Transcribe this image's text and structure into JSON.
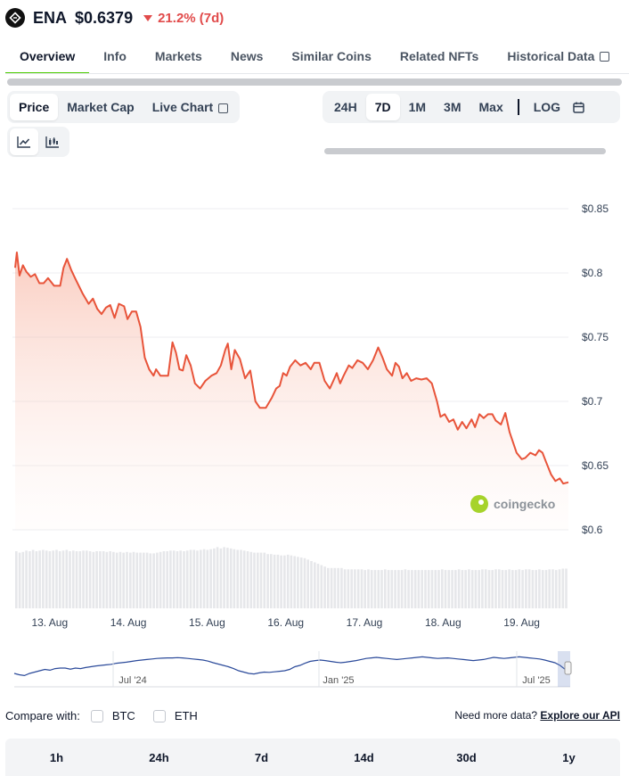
{
  "coin": {
    "symbol": "ENA",
    "price": "$0.6379",
    "change": "21.2% (7d)",
    "change_color": "#e14b4b"
  },
  "tabs": [
    {
      "label": "Overview",
      "active": true
    },
    {
      "label": "Info"
    },
    {
      "label": "Markets"
    },
    {
      "label": "News"
    },
    {
      "label": "Similar Coins"
    },
    {
      "label": "Related NFTs"
    },
    {
      "label": "Historical Data"
    }
  ],
  "chart_types": [
    "Price",
    "Market Cap",
    "Live Chart"
  ],
  "ranges": [
    "24H",
    "7D",
    "1M",
    "3M",
    "Max"
  ],
  "log_label": "LOG",
  "icons": {
    "line_chart": "line-chart-icon",
    "candle_chart": "candlestick-icon",
    "calendar": "calendar-icon",
    "external": "external-link-icon"
  },
  "watermark": "coingecko",
  "compare": {
    "label": "Compare with:",
    "options": [
      "BTC",
      "ETH"
    ]
  },
  "more_data": {
    "text": "Need more data?",
    "link": "Explore our API"
  },
  "bottom_table": {
    "headers": [
      "1h",
      "24h",
      "7d",
      "14d",
      "30d",
      "1y"
    ]
  },
  "chart_data": {
    "type": "area",
    "title": "",
    "xlabel": "",
    "ylabel": "",
    "line_color": "#e8543a",
    "x_ticks": [
      "13. Aug",
      "14. Aug",
      "15. Aug",
      "16. Aug",
      "17. Aug",
      "18. Aug",
      "19. Aug"
    ],
    "y_ticks": [
      "$0.85",
      "$0.8",
      "$0.75",
      "$0.7",
      "$0.65",
      "$0.6"
    ],
    "ylim": [
      0.6,
      0.85
    ],
    "x_start": "12. Aug 17:30",
    "x_end": "19. Aug 17:30",
    "series": [
      {
        "points": [
          [
            0.0,
            0.804
          ],
          [
            0.02,
            0.816
          ],
          [
            0.05,
            0.798
          ],
          [
            0.09,
            0.806
          ],
          [
            0.13,
            0.801
          ],
          [
            0.18,
            0.797
          ],
          [
            0.23,
            0.799
          ],
          [
            0.28,
            0.792
          ],
          [
            0.33,
            0.792
          ],
          [
            0.38,
            0.796
          ],
          [
            0.45,
            0.79
          ],
          [
            0.52,
            0.79
          ],
          [
            0.56,
            0.804
          ],
          [
            0.6,
            0.811
          ],
          [
            0.65,
            0.802
          ],
          [
            0.7,
            0.795
          ],
          [
            0.78,
            0.784
          ],
          [
            0.85,
            0.776
          ],
          [
            0.9,
            0.78
          ],
          [
            0.95,
            0.772
          ],
          [
            1.0,
            0.768
          ],
          [
            1.05,
            0.773
          ],
          [
            1.1,
            0.775
          ],
          [
            1.15,
            0.765
          ],
          [
            1.2,
            0.776
          ],
          [
            1.26,
            0.774
          ],
          [
            1.3,
            0.764
          ],
          [
            1.35,
            0.77
          ],
          [
            1.4,
            0.77
          ],
          [
            1.45,
            0.758
          ],
          [
            1.5,
            0.734
          ],
          [
            1.55,
            0.725
          ],
          [
            1.6,
            0.72
          ],
          [
            1.63,
            0.725
          ],
          [
            1.68,
            0.72
          ],
          [
            1.72,
            0.72
          ],
          [
            1.77,
            0.72
          ],
          [
            1.82,
            0.746
          ],
          [
            1.86,
            0.738
          ],
          [
            1.9,
            0.725
          ],
          [
            1.94,
            0.724
          ],
          [
            1.98,
            0.736
          ],
          [
            2.03,
            0.728
          ],
          [
            2.08,
            0.714
          ],
          [
            2.14,
            0.71
          ],
          [
            2.2,
            0.716
          ],
          [
            2.27,
            0.72
          ],
          [
            2.33,
            0.722
          ],
          [
            2.38,
            0.728
          ],
          [
            2.43,
            0.74
          ],
          [
            2.46,
            0.745
          ],
          [
            2.5,
            0.725
          ],
          [
            2.54,
            0.74
          ],
          [
            2.6,
            0.733
          ],
          [
            2.66,
            0.718
          ],
          [
            2.72,
            0.724
          ],
          [
            2.78,
            0.7
          ],
          [
            2.83,
            0.695
          ],
          [
            2.9,
            0.695
          ],
          [
            2.97,
            0.703
          ],
          [
            3.02,
            0.71
          ],
          [
            3.06,
            0.712
          ],
          [
            3.1,
            0.722
          ],
          [
            3.14,
            0.72
          ],
          [
            3.18,
            0.727
          ],
          [
            3.24,
            0.732
          ],
          [
            3.3,
            0.728
          ],
          [
            3.36,
            0.73
          ],
          [
            3.42,
            0.725
          ],
          [
            3.46,
            0.73
          ],
          [
            3.52,
            0.73
          ],
          [
            3.58,
            0.716
          ],
          [
            3.64,
            0.71
          ],
          [
            3.68,
            0.716
          ],
          [
            3.72,
            0.722
          ],
          [
            3.76,
            0.714
          ],
          [
            3.8,
            0.72
          ],
          [
            3.86,
            0.728
          ],
          [
            3.9,
            0.726
          ],
          [
            3.96,
            0.732
          ],
          [
            4.02,
            0.73
          ],
          [
            4.08,
            0.725
          ],
          [
            4.14,
            0.732
          ],
          [
            4.2,
            0.742
          ],
          [
            4.25,
            0.734
          ],
          [
            4.3,
            0.725
          ],
          [
            4.36,
            0.72
          ],
          [
            4.4,
            0.73
          ],
          [
            4.44,
            0.727
          ],
          [
            4.48,
            0.718
          ],
          [
            4.53,
            0.722
          ],
          [
            4.58,
            0.716
          ],
          [
            4.64,
            0.718
          ],
          [
            4.7,
            0.717
          ],
          [
            4.76,
            0.718
          ],
          [
            4.82,
            0.714
          ],
          [
            4.88,
            0.7
          ],
          [
            4.92,
            0.688
          ],
          [
            4.97,
            0.69
          ],
          [
            5.02,
            0.684
          ],
          [
            5.07,
            0.686
          ],
          [
            5.12,
            0.678
          ],
          [
            5.17,
            0.684
          ],
          [
            5.22,
            0.679
          ],
          [
            5.28,
            0.686
          ],
          [
            5.32,
            0.68
          ],
          [
            5.37,
            0.69
          ],
          [
            5.42,
            0.687
          ],
          [
            5.47,
            0.69
          ],
          [
            5.52,
            0.69
          ],
          [
            5.56,
            0.685
          ],
          [
            5.62,
            0.682
          ],
          [
            5.67,
            0.691
          ],
          [
            5.72,
            0.676
          ],
          [
            5.76,
            0.668
          ],
          [
            5.8,
            0.66
          ],
          [
            5.86,
            0.655
          ],
          [
            5.9,
            0.656
          ],
          [
            5.96,
            0.66
          ],
          [
            6.02,
            0.658
          ],
          [
            6.06,
            0.662
          ],
          [
            6.1,
            0.66
          ],
          [
            6.14,
            0.653
          ],
          [
            6.2,
            0.643
          ],
          [
            6.25,
            0.638
          ],
          [
            6.3,
            0.64
          ],
          [
            6.34,
            0.636
          ],
          [
            6.4,
            0.637
          ]
        ]
      }
    ],
    "volume_relative": [
      0.82,
      0.8,
      0.81,
      0.83,
      0.82,
      0.84,
      0.82,
      0.83,
      0.84,
      0.83,
      0.82,
      0.83,
      0.84,
      0.82,
      0.83,
      0.84,
      0.82,
      0.83,
      0.82,
      0.82,
      0.83,
      0.83,
      0.82,
      0.81,
      0.82,
      0.82,
      0.82,
      0.81,
      0.82,
      0.81,
      0.8,
      0.81,
      0.8,
      0.81,
      0.8,
      0.81,
      0.8,
      0.8,
      0.8,
      0.8,
      0.79,
      0.79,
      0.8,
      0.81,
      0.82,
      0.82,
      0.83,
      0.83,
      0.82,
      0.83,
      0.82,
      0.83,
      0.84,
      0.84,
      0.83,
      0.84,
      0.85,
      0.84,
      0.85,
      0.86,
      0.88,
      0.86,
      0.88,
      0.87,
      0.86,
      0.85,
      0.84,
      0.84,
      0.83,
      0.82,
      0.81,
      0.8,
      0.8,
      0.8,
      0.8,
      0.78,
      0.78,
      0.77,
      0.77,
      0.76,
      0.76,
      0.77,
      0.76,
      0.75,
      0.74,
      0.73,
      0.72,
      0.7,
      0.68,
      0.66,
      0.64,
      0.62,
      0.6,
      0.58,
      0.58,
      0.58,
      0.58,
      0.58,
      0.56,
      0.56,
      0.56,
      0.56,
      0.56,
      0.56,
      0.55,
      0.56,
      0.55,
      0.55,
      0.55,
      0.55,
      0.56,
      0.55,
      0.55,
      0.55,
      0.55,
      0.55,
      0.56,
      0.55,
      0.55,
      0.55,
      0.55,
      0.55,
      0.55,
      0.55,
      0.55,
      0.55,
      0.55,
      0.56,
      0.55,
      0.55,
      0.55,
      0.55,
      0.56,
      0.55,
      0.55,
      0.56,
      0.55,
      0.55,
      0.55,
      0.56,
      0.56,
      0.55,
      0.55,
      0.56,
      0.56,
      0.55,
      0.55,
      0.56,
      0.55,
      0.55,
      0.56,
      0.55,
      0.56,
      0.56,
      0.55,
      0.55,
      0.56,
      0.55,
      0.55,
      0.56,
      0.56,
      0.55,
      0.56,
      0.57,
      0.57
    ]
  },
  "navigator": {
    "x_labels": [
      "Jul '24",
      "Jan '25",
      "Jul '25"
    ],
    "series_relative": [
      0.3,
      0.25,
      0.22,
      0.3,
      0.35,
      0.4,
      0.45,
      0.42,
      0.48,
      0.5,
      0.5,
      0.46,
      0.5,
      0.48,
      0.52,
      0.55,
      0.58,
      0.6,
      0.62,
      0.64,
      0.68,
      0.7,
      0.72,
      0.75,
      0.78,
      0.8,
      0.82,
      0.84,
      0.86,
      0.87,
      0.88,
      0.88,
      0.89,
      0.88,
      0.86,
      0.84,
      0.82,
      0.8,
      0.76,
      0.7,
      0.65,
      0.6,
      0.55,
      0.48,
      0.4,
      0.35,
      0.3,
      0.28,
      0.32,
      0.35,
      0.34,
      0.36,
      0.38,
      0.4,
      0.45,
      0.55,
      0.6,
      0.68,
      0.75,
      0.78,
      0.8,
      0.78,
      0.75,
      0.72,
      0.7,
      0.72,
      0.75,
      0.78,
      0.82,
      0.86,
      0.88,
      0.9,
      0.88,
      0.86,
      0.84,
      0.82,
      0.84,
      0.86,
      0.88,
      0.9,
      0.92,
      0.9,
      0.88,
      0.86,
      0.87,
      0.88,
      0.86,
      0.84,
      0.82,
      0.8,
      0.78,
      0.8,
      0.82,
      0.86,
      0.9,
      0.88,
      0.86,
      0.88,
      0.9,
      0.92,
      0.9,
      0.88,
      0.86,
      0.84,
      0.8,
      0.75,
      0.7,
      0.6,
      0.45,
      0.38
    ]
  }
}
